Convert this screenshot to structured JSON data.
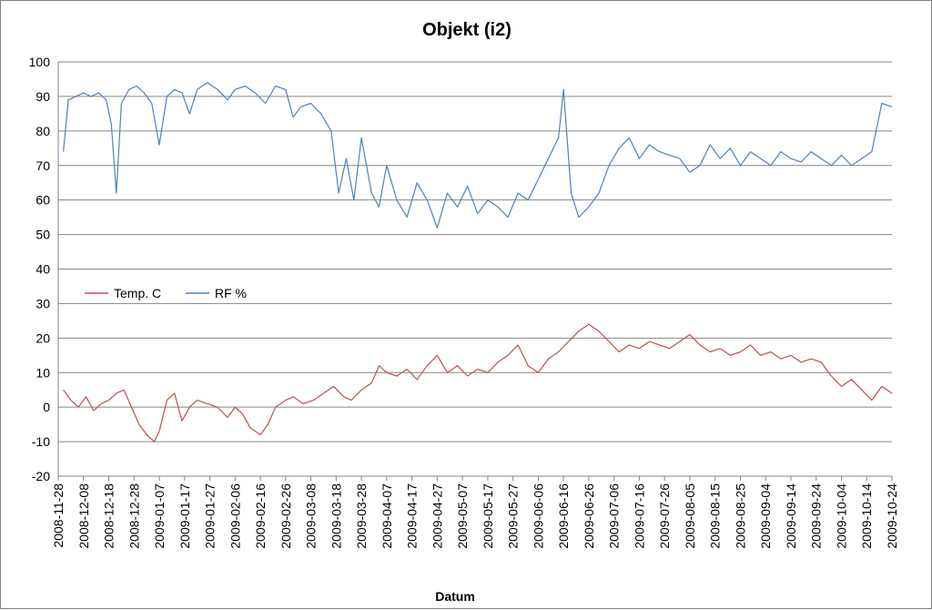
{
  "chart_data": {
    "type": "line",
    "title": "Objekt (i2)",
    "xlabel": "Datum",
    "ylabel": "",
    "ylim": [
      -20,
      100
    ],
    "yticks": [
      -20,
      -10,
      0,
      10,
      20,
      30,
      40,
      50,
      60,
      70,
      80,
      90,
      100
    ],
    "xlim": [
      "2008-11-28",
      "2009-10-24"
    ],
    "xticks": [
      "2008-11-28",
      "2008-12-08",
      "2008-12-18",
      "2008-12-28",
      "2009-01-07",
      "2009-01-17",
      "2009-01-27",
      "2009-02-06",
      "2009-02-16",
      "2009-02-26",
      "2009-03-08",
      "2009-03-18",
      "2009-03-28",
      "2009-04-07",
      "2009-04-17",
      "2009-04-27",
      "2009-05-07",
      "2009-05-17",
      "2009-05-27",
      "2009-06-06",
      "2009-06-16",
      "2009-06-26",
      "2009-07-06",
      "2009-07-16",
      "2009-07-26",
      "2009-08-05",
      "2009-08-15",
      "2009-08-25",
      "2009-09-04",
      "2009-09-14",
      "2009-09-24",
      "2009-10-04",
      "2009-10-14",
      "2009-10-24"
    ],
    "grid": "horizontal",
    "legend_position": "middle-left",
    "series": [
      {
        "name": "Temp. C",
        "color": "#c0504d",
        "points": [
          [
            "2008-11-30",
            5
          ],
          [
            "2008-12-03",
            2
          ],
          [
            "2008-12-06",
            0
          ],
          [
            "2008-12-09",
            3
          ],
          [
            "2008-12-12",
            -1
          ],
          [
            "2008-12-15",
            1
          ],
          [
            "2008-12-18",
            2
          ],
          [
            "2008-12-21",
            4
          ],
          [
            "2008-12-24",
            5
          ],
          [
            "2008-12-27",
            0
          ],
          [
            "2008-12-30",
            -5
          ],
          [
            "2009-01-02",
            -8
          ],
          [
            "2009-01-05",
            -10
          ],
          [
            "2009-01-07",
            -7
          ],
          [
            "2009-01-10",
            2
          ],
          [
            "2009-01-13",
            4
          ],
          [
            "2009-01-16",
            -4
          ],
          [
            "2009-01-19",
            0
          ],
          [
            "2009-01-22",
            2
          ],
          [
            "2009-01-26",
            1
          ],
          [
            "2009-01-30",
            0
          ],
          [
            "2009-02-03",
            -3
          ],
          [
            "2009-02-06",
            0
          ],
          [
            "2009-02-09",
            -2
          ],
          [
            "2009-02-12",
            -6
          ],
          [
            "2009-02-16",
            -8
          ],
          [
            "2009-02-19",
            -5
          ],
          [
            "2009-02-22",
            0
          ],
          [
            "2009-02-26",
            2
          ],
          [
            "2009-03-01",
            3
          ],
          [
            "2009-03-05",
            1
          ],
          [
            "2009-03-09",
            2
          ],
          [
            "2009-03-13",
            4
          ],
          [
            "2009-03-17",
            6
          ],
          [
            "2009-03-21",
            3
          ],
          [
            "2009-03-24",
            2
          ],
          [
            "2009-03-28",
            5
          ],
          [
            "2009-04-01",
            7
          ],
          [
            "2009-04-04",
            12
          ],
          [
            "2009-04-07",
            10
          ],
          [
            "2009-04-11",
            9
          ],
          [
            "2009-04-15",
            11
          ],
          [
            "2009-04-19",
            8
          ],
          [
            "2009-04-23",
            12
          ],
          [
            "2009-04-27",
            15
          ],
          [
            "2009-05-01",
            10
          ],
          [
            "2009-05-05",
            12
          ],
          [
            "2009-05-09",
            9
          ],
          [
            "2009-05-13",
            11
          ],
          [
            "2009-05-17",
            10
          ],
          [
            "2009-05-21",
            13
          ],
          [
            "2009-05-25",
            15
          ],
          [
            "2009-05-29",
            18
          ],
          [
            "2009-06-02",
            12
          ],
          [
            "2009-06-06",
            10
          ],
          [
            "2009-06-10",
            14
          ],
          [
            "2009-06-14",
            16
          ],
          [
            "2009-06-18",
            19
          ],
          [
            "2009-06-22",
            22
          ],
          [
            "2009-06-26",
            24
          ],
          [
            "2009-06-30",
            22
          ],
          [
            "2009-07-04",
            19
          ],
          [
            "2009-07-08",
            16
          ],
          [
            "2009-07-12",
            18
          ],
          [
            "2009-07-16",
            17
          ],
          [
            "2009-07-20",
            19
          ],
          [
            "2009-07-24",
            18
          ],
          [
            "2009-07-28",
            17
          ],
          [
            "2009-08-01",
            19
          ],
          [
            "2009-08-05",
            21
          ],
          [
            "2009-08-09",
            18
          ],
          [
            "2009-08-13",
            16
          ],
          [
            "2009-08-17",
            17
          ],
          [
            "2009-08-21",
            15
          ],
          [
            "2009-08-25",
            16
          ],
          [
            "2009-08-29",
            18
          ],
          [
            "2009-09-02",
            15
          ],
          [
            "2009-09-06",
            16
          ],
          [
            "2009-09-10",
            14
          ],
          [
            "2009-09-14",
            15
          ],
          [
            "2009-09-18",
            13
          ],
          [
            "2009-09-22",
            14
          ],
          [
            "2009-09-26",
            13
          ],
          [
            "2009-09-30",
            9
          ],
          [
            "2009-10-04",
            6
          ],
          [
            "2009-10-08",
            8
          ],
          [
            "2009-10-12",
            5
          ],
          [
            "2009-10-16",
            2
          ],
          [
            "2009-10-20",
            6
          ],
          [
            "2009-10-24",
            4
          ]
        ]
      },
      {
        "name": "RF %",
        "color": "#4f81bd",
        "points": [
          [
            "2008-11-30",
            74
          ],
          [
            "2008-12-02",
            89
          ],
          [
            "2008-12-05",
            90
          ],
          [
            "2008-12-08",
            91
          ],
          [
            "2008-12-11",
            90
          ],
          [
            "2008-12-14",
            91
          ],
          [
            "2008-12-17",
            89
          ],
          [
            "2008-12-19",
            82
          ],
          [
            "2008-12-21",
            62
          ],
          [
            "2008-12-23",
            88
          ],
          [
            "2008-12-26",
            92
          ],
          [
            "2008-12-29",
            93
          ],
          [
            "2009-01-01",
            91
          ],
          [
            "2009-01-04",
            88
          ],
          [
            "2009-01-07",
            76
          ],
          [
            "2009-01-10",
            90
          ],
          [
            "2009-01-13",
            92
          ],
          [
            "2009-01-16",
            91
          ],
          [
            "2009-01-19",
            85
          ],
          [
            "2009-01-22",
            92
          ],
          [
            "2009-01-26",
            94
          ],
          [
            "2009-01-30",
            92
          ],
          [
            "2009-02-03",
            89
          ],
          [
            "2009-02-06",
            92
          ],
          [
            "2009-02-10",
            93
          ],
          [
            "2009-02-14",
            91
          ],
          [
            "2009-02-18",
            88
          ],
          [
            "2009-02-22",
            93
          ],
          [
            "2009-02-26",
            92
          ],
          [
            "2009-03-01",
            84
          ],
          [
            "2009-03-04",
            87
          ],
          [
            "2009-03-08",
            88
          ],
          [
            "2009-03-12",
            85
          ],
          [
            "2009-03-16",
            80
          ],
          [
            "2009-03-19",
            62
          ],
          [
            "2009-03-22",
            72
          ],
          [
            "2009-03-25",
            60
          ],
          [
            "2009-03-28",
            78
          ],
          [
            "2009-04-01",
            62
          ],
          [
            "2009-04-04",
            58
          ],
          [
            "2009-04-07",
            70
          ],
          [
            "2009-04-11",
            60
          ],
          [
            "2009-04-15",
            55
          ],
          [
            "2009-04-19",
            65
          ],
          [
            "2009-04-23",
            60
          ],
          [
            "2009-04-27",
            52
          ],
          [
            "2009-05-01",
            62
          ],
          [
            "2009-05-05",
            58
          ],
          [
            "2009-05-09",
            64
          ],
          [
            "2009-05-13",
            56
          ],
          [
            "2009-05-17",
            60
          ],
          [
            "2009-05-21",
            58
          ],
          [
            "2009-05-25",
            55
          ],
          [
            "2009-05-29",
            62
          ],
          [
            "2009-06-02",
            60
          ],
          [
            "2009-06-06",
            66
          ],
          [
            "2009-06-10",
            72
          ],
          [
            "2009-06-14",
            78
          ],
          [
            "2009-06-16",
            92
          ],
          [
            "2009-06-19",
            62
          ],
          [
            "2009-06-22",
            55
          ],
          [
            "2009-06-26",
            58
          ],
          [
            "2009-06-30",
            62
          ],
          [
            "2009-07-04",
            70
          ],
          [
            "2009-07-08",
            75
          ],
          [
            "2009-07-12",
            78
          ],
          [
            "2009-07-16",
            72
          ],
          [
            "2009-07-20",
            76
          ],
          [
            "2009-07-24",
            74
          ],
          [
            "2009-07-28",
            73
          ],
          [
            "2009-08-01",
            72
          ],
          [
            "2009-08-05",
            68
          ],
          [
            "2009-08-09",
            70
          ],
          [
            "2009-08-13",
            76
          ],
          [
            "2009-08-17",
            72
          ],
          [
            "2009-08-21",
            75
          ],
          [
            "2009-08-25",
            70
          ],
          [
            "2009-08-29",
            74
          ],
          [
            "2009-09-02",
            72
          ],
          [
            "2009-09-06",
            70
          ],
          [
            "2009-09-10",
            74
          ],
          [
            "2009-09-14",
            72
          ],
          [
            "2009-09-18",
            71
          ],
          [
            "2009-09-22",
            74
          ],
          [
            "2009-09-26",
            72
          ],
          [
            "2009-09-30",
            70
          ],
          [
            "2009-10-04",
            73
          ],
          [
            "2009-10-08",
            70
          ],
          [
            "2009-10-12",
            72
          ],
          [
            "2009-10-16",
            74
          ],
          [
            "2009-10-20",
            88
          ],
          [
            "2009-10-24",
            87
          ]
        ]
      }
    ]
  }
}
